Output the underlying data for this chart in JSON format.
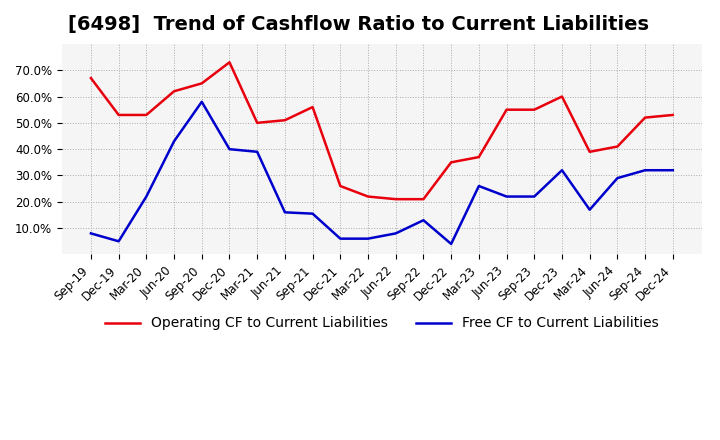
{
  "title": "[6498]  Trend of Cashflow Ratio to Current Liabilities",
  "x_labels": [
    "Sep-19",
    "Dec-19",
    "Mar-20",
    "Jun-20",
    "Sep-20",
    "Dec-20",
    "Mar-21",
    "Jun-21",
    "Sep-21",
    "Dec-21",
    "Mar-22",
    "Jun-22",
    "Sep-22",
    "Dec-22",
    "Mar-23",
    "Jun-23",
    "Sep-23",
    "Dec-23",
    "Mar-24",
    "Jun-24",
    "Sep-24",
    "Dec-24"
  ],
  "operating_cf": [
    0.67,
    0.53,
    0.53,
    0.62,
    0.65,
    0.73,
    0.5,
    0.51,
    0.56,
    0.26,
    0.22,
    0.21,
    0.21,
    0.35,
    0.37,
    0.55,
    0.55,
    0.6,
    0.39,
    0.41,
    0.52,
    0.53
  ],
  "free_cf": [
    0.08,
    0.05,
    0.22,
    0.43,
    0.58,
    0.4,
    0.39,
    0.16,
    0.155,
    0.06,
    0.06,
    0.08,
    0.13,
    0.04,
    0.26,
    0.22,
    0.22,
    0.32,
    0.17,
    0.29,
    0.32,
    0.32
  ],
  "operating_color": "#e8000d",
  "free_color": "#0000cd",
  "background_color": "#ffffff",
  "plot_bg_color": "#f5f5f5",
  "ylim": [
    0.0,
    0.8
  ],
  "yticks": [
    0.1,
    0.2,
    0.3,
    0.4,
    0.5,
    0.6,
    0.7
  ],
  "legend_operating": "Operating CF to Current Liabilities",
  "legend_free": "Free CF to Current Liabilities",
  "title_fontsize": 14,
  "tick_fontsize": 8.5,
  "legend_fontsize": 10,
  "line_width": 1.8
}
